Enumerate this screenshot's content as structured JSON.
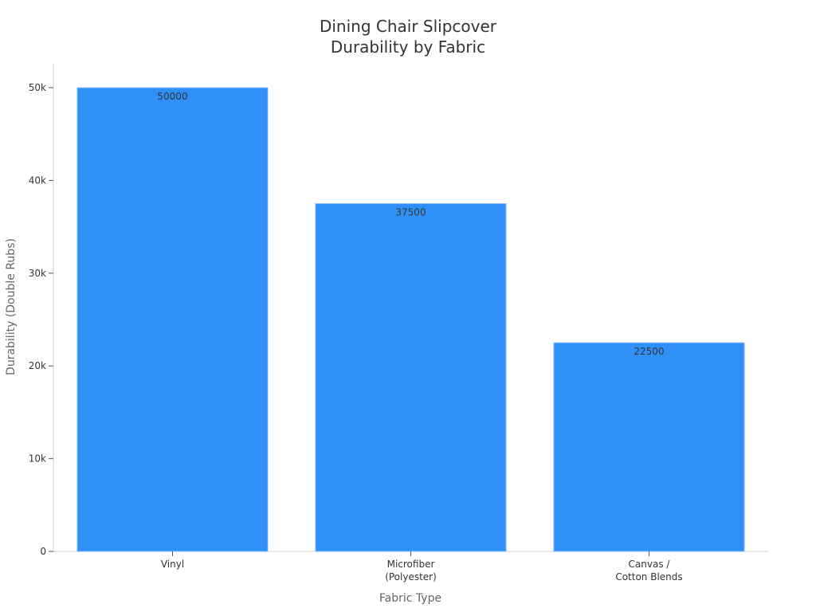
{
  "chart_data": {
    "type": "bar",
    "title_lines": [
      "Dining Chair Slipcover",
      "Durability by Fabric"
    ],
    "xlabel": "Fabric Type",
    "ylabel": "Durability (Double Rubs)",
    "categories": [
      [
        "Vinyl"
      ],
      [
        "Microfiber",
        "(Polyester)"
      ],
      [
        "Canvas /",
        "Cotton Blends"
      ]
    ],
    "values": [
      50000,
      37500,
      22500
    ],
    "data_labels": [
      "50000",
      "37500",
      "22500"
    ],
    "ylim": [
      0,
      52500
    ],
    "y_ticks": [
      0,
      10000,
      20000,
      30000,
      40000,
      50000
    ],
    "y_tick_labels": [
      "0",
      "10k",
      "20k",
      "30k",
      "40k",
      "50k"
    ],
    "grid": false,
    "legend": "none",
    "bar_color": "#2f91f7"
  }
}
